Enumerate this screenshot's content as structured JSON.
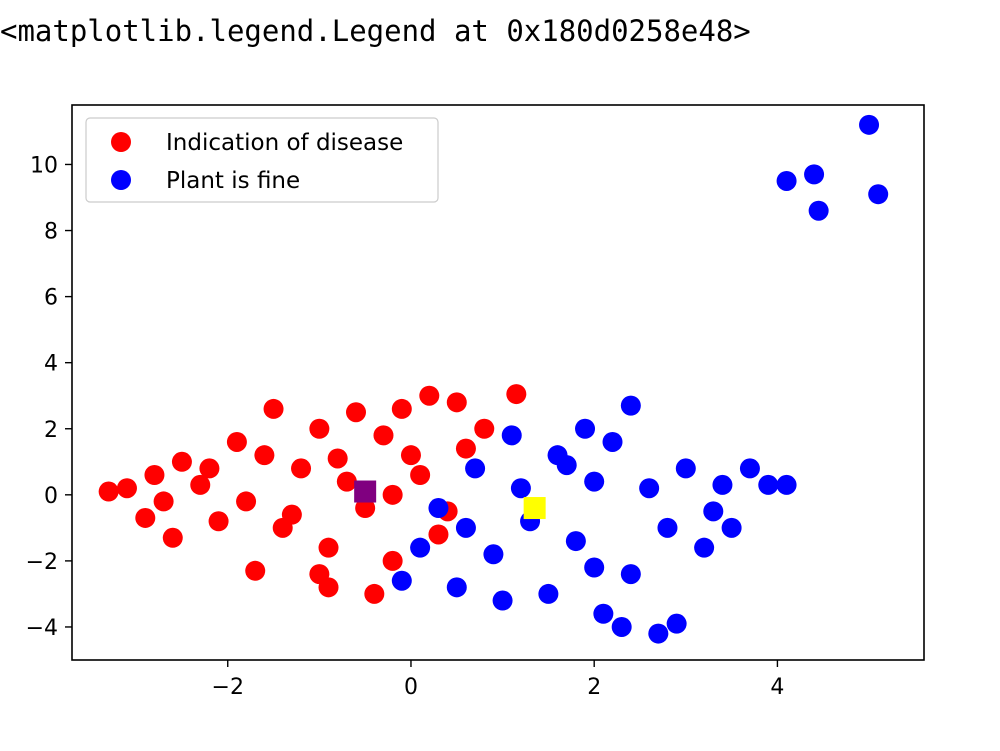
{
  "output_repr": "<matplotlib.legend.Legend at 0x180d0258e48>",
  "colors": {
    "disease": "#ff0000",
    "fine": "#0000ff",
    "centroid_disease": "#800080",
    "centroid_fine": "#ffff00",
    "axes": "#000000"
  },
  "chart_data": {
    "type": "scatter",
    "title": "",
    "xlabel": "",
    "ylabel": "",
    "xlim": [
      -3.7,
      5.6
    ],
    "ylim": [
      -5.0,
      11.8
    ],
    "xticks": [
      -2,
      0,
      2,
      4
    ],
    "yticks": [
      -4,
      -2,
      0,
      2,
      4,
      6,
      8,
      10
    ],
    "xtick_labels": [
      "−2",
      "0",
      "2",
      "4"
    ],
    "ytick_labels": [
      "−4",
      "−2",
      "0",
      "2",
      "4",
      "6",
      "8",
      "10"
    ],
    "grid": false,
    "legend_position": "upper-left",
    "series": [
      {
        "name": "Indication of disease",
        "color": "#ff0000",
        "marker": "circle",
        "points": [
          [
            -3.3,
            0.1
          ],
          [
            -3.1,
            0.2
          ],
          [
            -2.9,
            -0.7
          ],
          [
            -2.8,
            0.6
          ],
          [
            -2.6,
            -1.3
          ],
          [
            -2.5,
            1.0
          ],
          [
            -2.3,
            0.3
          ],
          [
            -2.1,
            -0.8
          ],
          [
            -1.9,
            1.6
          ],
          [
            -1.8,
            -0.2
          ],
          [
            -1.6,
            1.2
          ],
          [
            -1.5,
            2.6
          ],
          [
            -1.4,
            -1.0
          ],
          [
            -1.2,
            0.8
          ],
          [
            -1.0,
            2.0
          ],
          [
            -0.9,
            -1.6
          ],
          [
            -0.8,
            1.1
          ],
          [
            -0.6,
            2.5
          ],
          [
            -0.5,
            -0.4
          ],
          [
            -0.3,
            1.8
          ],
          [
            -0.2,
            -2.0
          ],
          [
            -0.1,
            2.6
          ],
          [
            0.1,
            0.6
          ],
          [
            0.2,
            3.0
          ],
          [
            0.3,
            -1.2
          ],
          [
            0.5,
            2.8
          ],
          [
            0.6,
            1.4
          ],
          [
            0.8,
            2.0
          ],
          [
            -1.7,
            -2.3
          ],
          [
            -0.9,
            -2.8
          ],
          [
            -0.4,
            -3.0
          ],
          [
            1.15,
            3.05
          ],
          [
            -2.2,
            0.8
          ],
          [
            -1.3,
            -0.6
          ],
          [
            0.0,
            1.2
          ],
          [
            -0.7,
            0.4
          ],
          [
            -2.7,
            -0.2
          ],
          [
            -1.0,
            -2.4
          ],
          [
            0.4,
            -0.5
          ],
          [
            -0.2,
            0.0
          ]
        ]
      },
      {
        "name": "Plant is fine",
        "color": "#0000ff",
        "marker": "circle",
        "points": [
          [
            -0.1,
            -2.6
          ],
          [
            0.1,
            -1.6
          ],
          [
            0.3,
            -0.4
          ],
          [
            0.5,
            -2.8
          ],
          [
            0.7,
            0.8
          ],
          [
            0.9,
            -1.8
          ],
          [
            1.1,
            1.8
          ],
          [
            1.3,
            -0.8
          ],
          [
            1.5,
            -3.0
          ],
          [
            1.6,
            1.2
          ],
          [
            1.8,
            -1.4
          ],
          [
            2.0,
            0.4
          ],
          [
            2.1,
            -3.6
          ],
          [
            2.2,
            1.6
          ],
          [
            2.4,
            -2.4
          ],
          [
            2.6,
            0.2
          ],
          [
            2.7,
            -4.2
          ],
          [
            2.8,
            -1.0
          ],
          [
            3.0,
            0.8
          ],
          [
            3.2,
            -1.6
          ],
          [
            3.4,
            0.3
          ],
          [
            3.5,
            -1.0
          ],
          [
            3.7,
            0.8
          ],
          [
            3.9,
            0.3
          ],
          [
            4.1,
            0.3
          ],
          [
            2.9,
            -3.9
          ],
          [
            2.3,
            -4.0
          ],
          [
            1.0,
            -3.2
          ],
          [
            1.9,
            2.0
          ],
          [
            2.4,
            2.7
          ],
          [
            4.1,
            9.5
          ],
          [
            4.4,
            9.7
          ],
          [
            4.45,
            8.6
          ],
          [
            5.0,
            11.2
          ],
          [
            5.1,
            9.1
          ],
          [
            1.2,
            0.2
          ],
          [
            0.6,
            -1.0
          ],
          [
            2.0,
            -2.2
          ],
          [
            3.3,
            -0.5
          ],
          [
            1.7,
            0.9
          ]
        ]
      }
    ],
    "centroids": [
      {
        "label": "",
        "color": "#800080",
        "marker": "square",
        "x": -0.5,
        "y": 0.1
      },
      {
        "label": "",
        "color": "#ffff00",
        "marker": "square",
        "x": 1.35,
        "y": -0.4
      }
    ]
  }
}
